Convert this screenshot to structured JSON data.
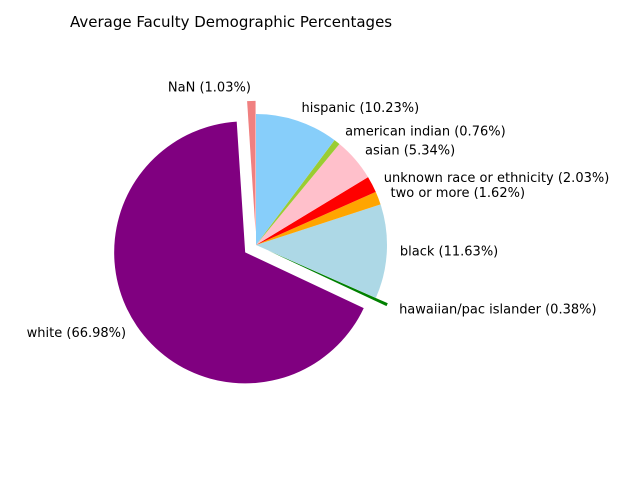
{
  "chart_data": {
    "type": "pie",
    "title": "Average Faculty Demographic Percentages",
    "start_angle_deg": 90,
    "direction": "counterclockwise",
    "slices": [
      {
        "label": "NaN (1.03%)",
        "value": 1.03,
        "color": "#f08080",
        "explode": 0.1
      },
      {
        "label": "white (66.98%)",
        "value": 66.98,
        "color": "#800080",
        "explode": 0.1
      },
      {
        "label": "hawaiian/pac islander (0.38%)",
        "value": 0.38,
        "color": "#008000",
        "explode": 0.1
      },
      {
        "label": "black (11.63%)",
        "value": 11.63,
        "color": "#add8e6",
        "explode": 0
      },
      {
        "label": "two or more (1.62%)",
        "value": 1.62,
        "color": "#ffa500",
        "explode": 0
      },
      {
        "label": "unknown race or ethnicity (2.03%)",
        "value": 2.03,
        "color": "#ff0000",
        "explode": 0
      },
      {
        "label": "asian (5.34%)",
        "value": 5.34,
        "color": "#ffc0cb",
        "explode": 0
      },
      {
        "label": "american indian (0.76%)",
        "value": 0.76,
        "color": "#9acd32",
        "explode": 0
      },
      {
        "label": "hispanic (10.23%)",
        "value": 10.23,
        "color": "#87cefa",
        "explode": 0
      }
    ]
  }
}
